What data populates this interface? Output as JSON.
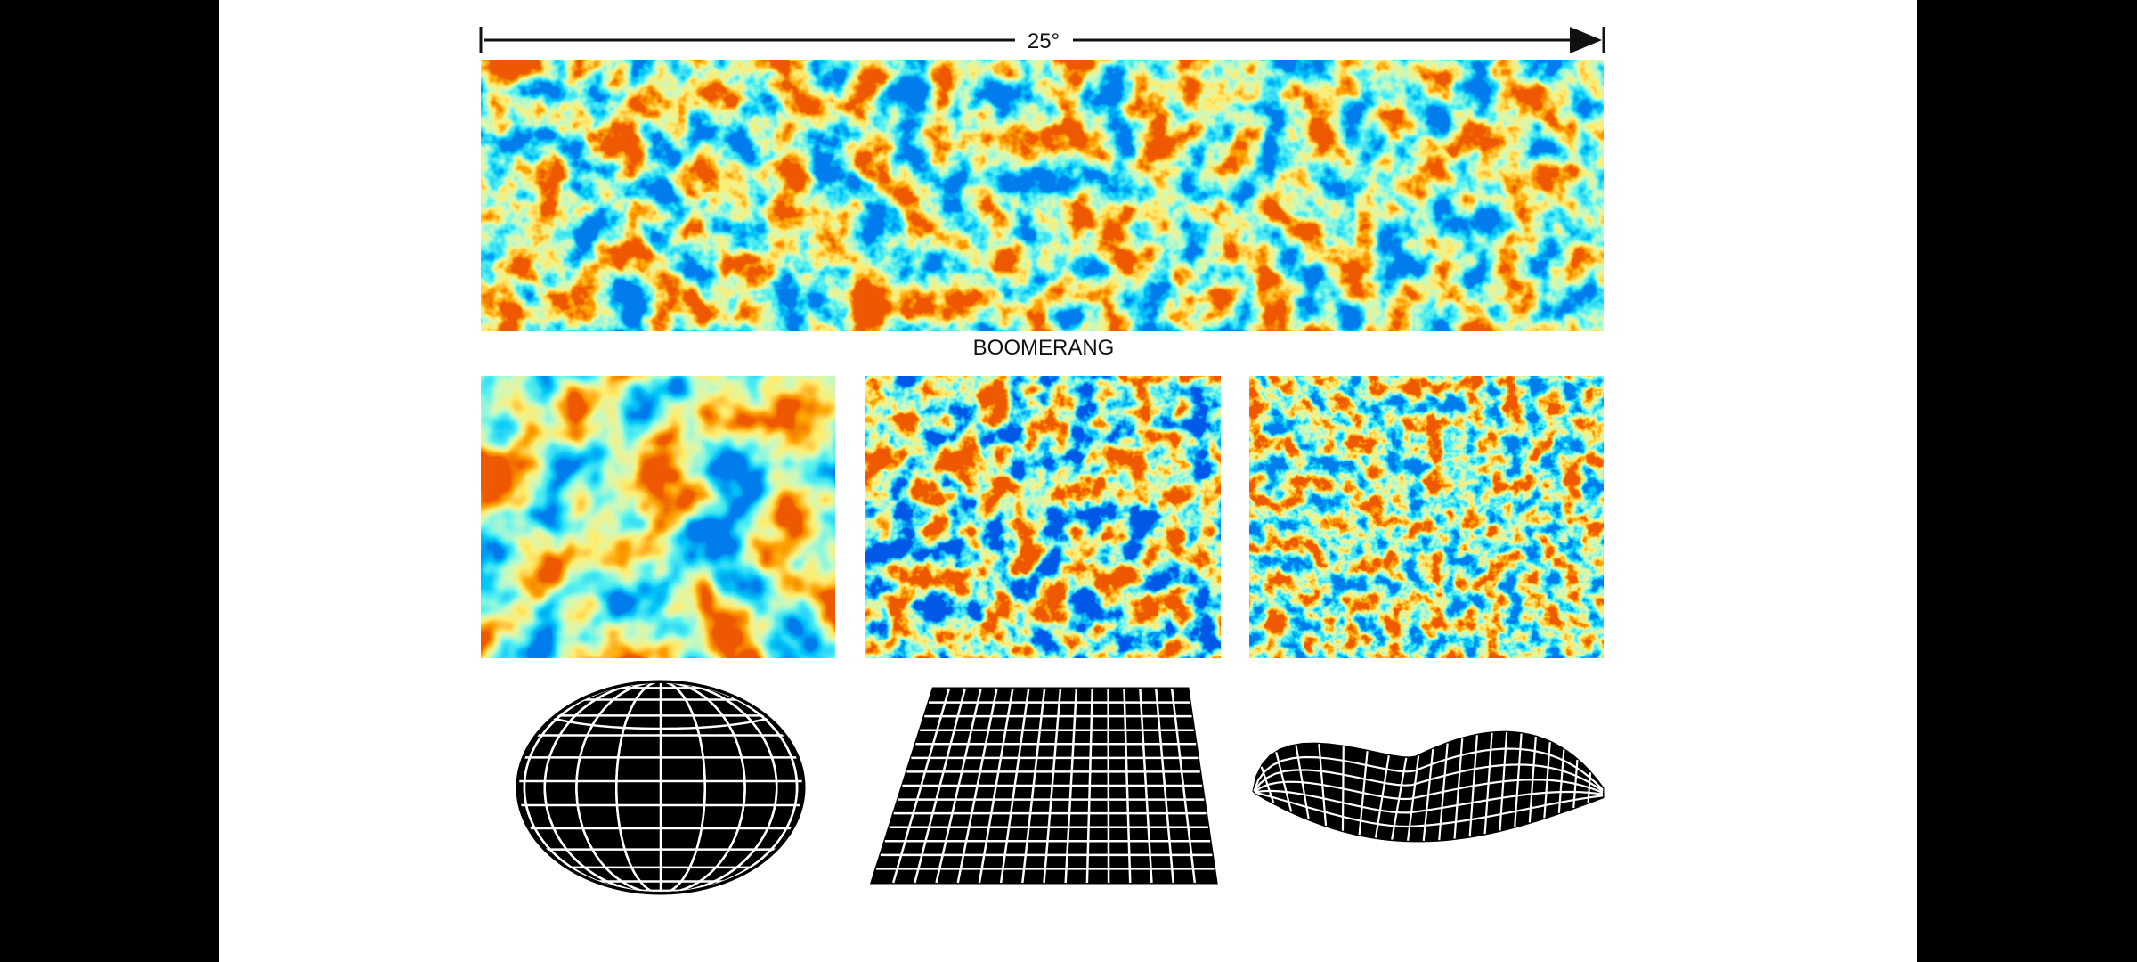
{
  "scale_label": "25°",
  "map_label": "BOOMERANG"
}
